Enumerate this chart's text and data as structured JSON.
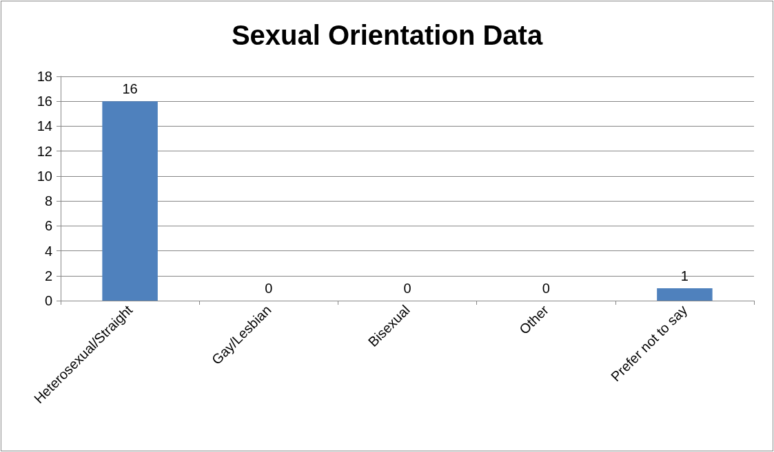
{
  "chart_data": {
    "type": "bar",
    "title": "Sexual Orientation Data",
    "categories": [
      "Heterosexual/Straight",
      "Gay/Lesbian",
      "Bisexual",
      "Other",
      "Prefer not to say"
    ],
    "values": [
      16,
      0,
      0,
      0,
      1
    ],
    "color": "#4f81bd",
    "ylim": [
      0,
      18
    ],
    "yticks": [
      0,
      2,
      4,
      6,
      8,
      10,
      12,
      14,
      16,
      18
    ],
    "grid": "y",
    "data_labels": true
  }
}
